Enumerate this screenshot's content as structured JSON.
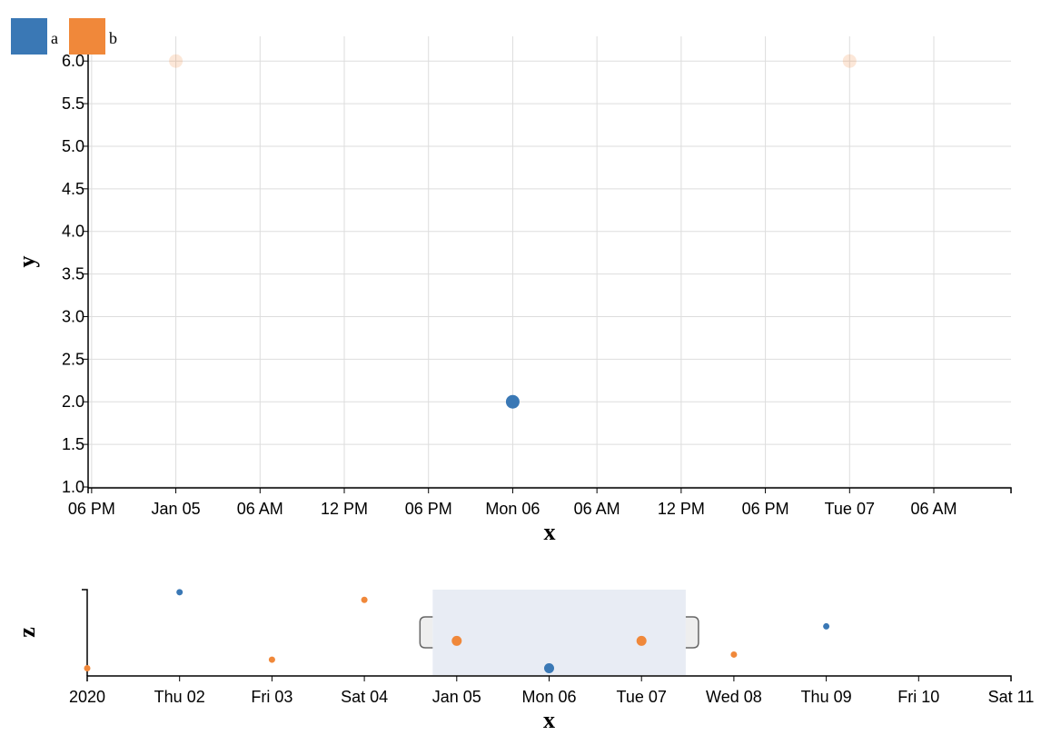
{
  "chart_data": [
    {
      "type": "scatter",
      "x_label": "x",
      "y_label": "y",
      "xlim": [
        "2020-01-04T17:45",
        "2020-01-07T11:30"
      ],
      "xticks": [
        {
          "value": "2020-01-04T18:00",
          "label": "06 PM"
        },
        {
          "value": "2020-01-05T00:00",
          "label": "Jan 05"
        },
        {
          "value": "2020-01-05T06:00",
          "label": "06 AM"
        },
        {
          "value": "2020-01-05T12:00",
          "label": "12 PM"
        },
        {
          "value": "2020-01-05T18:00",
          "label": "06 PM"
        },
        {
          "value": "2020-01-06T00:00",
          "label": "Mon 06"
        },
        {
          "value": "2020-01-06T06:00",
          "label": "06 AM"
        },
        {
          "value": "2020-01-06T12:00",
          "label": "12 PM"
        },
        {
          "value": "2020-01-06T18:00",
          "label": "06 PM"
        },
        {
          "value": "2020-01-07T00:00",
          "label": "Tue 07"
        },
        {
          "value": "2020-01-07T06:00",
          "label": "06 AM"
        }
      ],
      "ylim": [
        1,
        6.29
      ],
      "yticks": [
        {
          "value": 1,
          "label": "1.0"
        },
        1.5,
        {
          "value": 2,
          "label": "2.0"
        },
        2.5,
        {
          "value": 3,
          "label": "3.0"
        },
        3.5,
        {
          "value": 4,
          "label": "4.0"
        },
        4.5,
        {
          "value": 5,
          "label": "5.0"
        },
        5.5,
        {
          "value": 6,
          "label": "6.0"
        }
      ],
      "grid": true,
      "series": [
        {
          "name": "a",
          "color": "#3a78b5",
          "opacity": 1,
          "x": [
            "2020-01-06T00:00"
          ],
          "values": [
            2
          ]
        },
        {
          "name": "b",
          "color": "#f0883a",
          "opacity": 0.2,
          "x": [
            "2020-01-05T00:00",
            "2020-01-07T00:00"
          ],
          "values": [
            6,
            6
          ]
        }
      ]
    },
    {
      "type": "scatter",
      "x_label": "x",
      "y_label": "z",
      "xlim": [
        "2020-01-01T00:00",
        "2020-01-11T00:00"
      ],
      "xticks": [
        {
          "value": "2020-01-01T00:00",
          "label": "2020"
        },
        {
          "value": "2020-01-02T00:00",
          "label": "Thu 02"
        },
        {
          "value": "2020-01-03T00:00",
          "label": "Fri 03"
        },
        {
          "value": "2020-01-04T00:00",
          "label": "Sat 04"
        },
        {
          "value": "2020-01-05T00:00",
          "label": "Jan 05"
        },
        {
          "value": "2020-01-06T00:00",
          "label": "Mon 06"
        },
        {
          "value": "2020-01-07T00:00",
          "label": "Tue 07"
        },
        {
          "value": "2020-01-08T00:00",
          "label": "Wed 08"
        },
        {
          "value": "2020-01-09T00:00",
          "label": "Thu 09"
        },
        {
          "value": "2020-01-10T00:00",
          "label": "Fri 10"
        },
        {
          "value": "2020-01-11T00:00",
          "label": "Sat 11"
        }
      ],
      "ylim": [
        0,
        10
      ],
      "series": [
        {
          "color": "#3a78b5",
          "x": [
            "2020-01-02T00:00",
            "2020-01-06T00:00",
            "2020-01-09T00:00"
          ],
          "values": [
            9.7,
            0.8,
            5.7
          ]
        },
        {
          "color": "#f0883a",
          "x": [
            "2020-01-01T00:00",
            "2020-01-03T00:00",
            "2020-01-04T00:00",
            "2020-01-05T00:00",
            "2020-01-07T00:00",
            "2020-01-08T00:00"
          ],
          "values": [
            0.8,
            1.8,
            8.8,
            4.0,
            4.0,
            2.4
          ]
        }
      ]
    }
  ]
}
